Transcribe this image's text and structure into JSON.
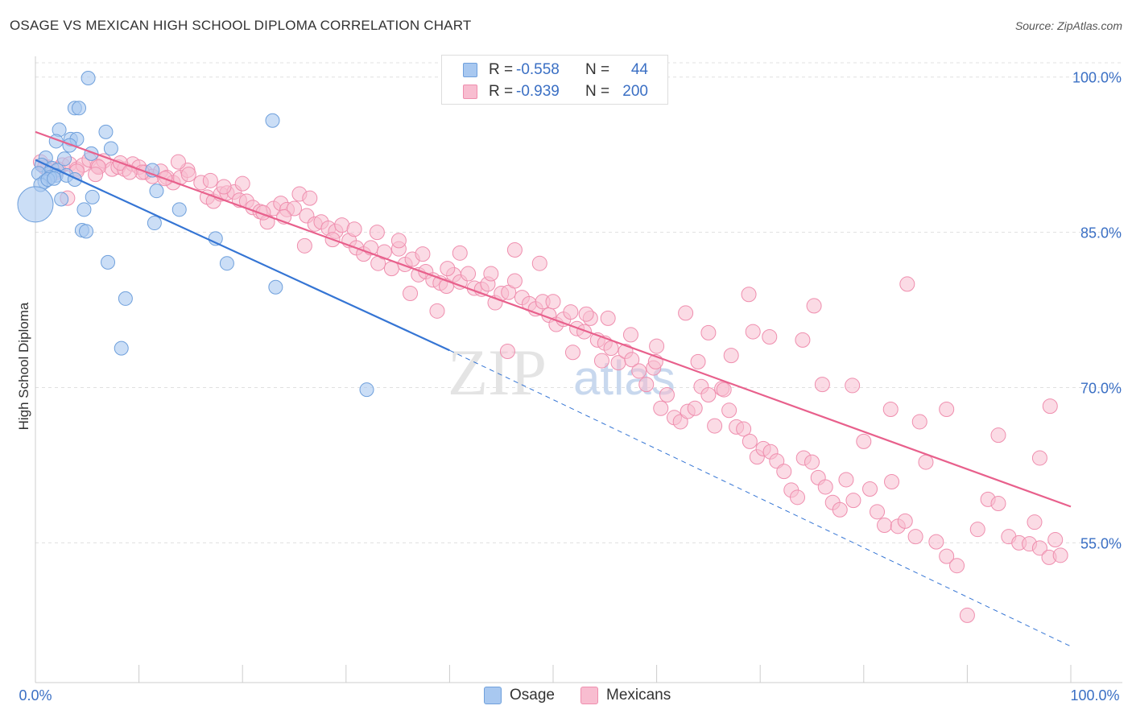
{
  "header": {
    "title": "OSAGE VS MEXICAN HIGH SCHOOL DIPLOMA CORRELATION CHART",
    "source": "Source: ZipAtlas.com"
  },
  "watermark": {
    "zip": "ZIP",
    "atlas": "atlas"
  },
  "colors": {
    "osage_fill": "#a8c8f0",
    "osage_stroke": "#6fa0dc",
    "osage_line": "#3575d4",
    "mexicans_fill": "#f8bdd0",
    "mexicans_stroke": "#ef8eae",
    "mexicans_line": "#e8608c",
    "tick_label": "#3a6fc4",
    "grid": "#e0e0e0"
  },
  "legend": {
    "osage": {
      "r_label": "R =",
      "r_value": "-0.558",
      "n_label": "N =",
      "n_value": "44"
    },
    "mexicans": {
      "r_label": "R =",
      "r_value": "-0.939",
      "n_label": "N =",
      "n_value": "200"
    }
  },
  "chart_data": {
    "type": "scatter",
    "title": "OSAGE VS MEXICAN HIGH SCHOOL DIPLOMA CORRELATION CHART",
    "xlabel": "",
    "ylabel": "High School Diploma",
    "xlim": [
      0,
      100
    ],
    "ylim": [
      41.5,
      102
    ],
    "x_tick_labels": [
      "0.0%",
      "100.0%"
    ],
    "y_ticks": [
      {
        "value": 100,
        "label": "100.0%"
      },
      {
        "value": 85,
        "label": "85.0%"
      },
      {
        "value": 70,
        "label": "70.0%"
      },
      {
        "value": 55,
        "label": "55.0%"
      }
    ],
    "series": [
      {
        "name": "Osage",
        "r": -0.558,
        "n": 44,
        "trend": {
          "x0": 0,
          "y0": 92.0,
          "x1": 40,
          "y1": 73.6,
          "dashed_to_x": 100,
          "dashed_to_y": 45.0
        },
        "points": [
          [
            5.1,
            99.9
          ],
          [
            3.8,
            97.0
          ],
          [
            4.2,
            97.0
          ],
          [
            2.3,
            94.9
          ],
          [
            6.8,
            94.7
          ],
          [
            3.4,
            94.0
          ],
          [
            2.0,
            93.8
          ],
          [
            4.0,
            94.0
          ],
          [
            3.3,
            93.4
          ],
          [
            7.3,
            93.1
          ],
          [
            5.4,
            92.6
          ],
          [
            2.8,
            92.1
          ],
          [
            1.0,
            92.2
          ],
          [
            0.6,
            91.5
          ],
          [
            1.6,
            91.2
          ],
          [
            2.1,
            91.0
          ],
          [
            1.3,
            90.7
          ],
          [
            0.3,
            90.7
          ],
          [
            2.0,
            90.5
          ],
          [
            3.0,
            90.5
          ],
          [
            1.4,
            90.3
          ],
          [
            3.8,
            90.1
          ],
          [
            0.9,
            89.9
          ],
          [
            0.5,
            89.6
          ],
          [
            1.2,
            90.1
          ],
          [
            11.3,
            91.0
          ],
          [
            11.7,
            89.0
          ],
          [
            2.5,
            88.2
          ],
          [
            5.5,
            88.4
          ],
          [
            0.0,
            87.7
          ],
          [
            4.7,
            87.2
          ],
          [
            13.9,
            87.2
          ],
          [
            11.5,
            85.9
          ],
          [
            4.5,
            85.2
          ],
          [
            4.9,
            85.1
          ],
          [
            17.4,
            84.4
          ],
          [
            7.0,
            82.1
          ],
          [
            18.5,
            82.0
          ],
          [
            8.7,
            78.6
          ],
          [
            23.2,
            79.7
          ],
          [
            8.3,
            73.8
          ],
          [
            22.9,
            95.8
          ],
          [
            32.0,
            69.8
          ],
          [
            1.8,
            90.2
          ]
        ]
      },
      {
        "name": "Mexicans",
        "r": -0.939,
        "n": 200,
        "trend": {
          "x0": 0,
          "y0": 94.7,
          "x1": 100,
          "y1": 58.5
        },
        "points": [
          [
            0.5,
            91.8
          ],
          [
            1.2,
            91.3
          ],
          [
            2.0,
            90.8
          ],
          [
            2.6,
            91.5
          ],
          [
            3.3,
            91.6
          ],
          [
            4.0,
            91.1
          ],
          [
            4.6,
            91.5
          ],
          [
            5.2,
            92.0
          ],
          [
            6.0,
            91.4
          ],
          [
            6.6,
            91.9
          ],
          [
            7.4,
            91.1
          ],
          [
            8.0,
            91.3
          ],
          [
            8.6,
            91.1
          ],
          [
            9.4,
            91.6
          ],
          [
            10.0,
            91.3
          ],
          [
            10.6,
            90.8
          ],
          [
            11.3,
            90.4
          ],
          [
            12.1,
            90.9
          ],
          [
            12.7,
            90.3
          ],
          [
            13.3,
            89.8
          ],
          [
            14.0,
            90.3
          ],
          [
            14.7,
            91.0
          ],
          [
            13.8,
            91.8
          ],
          [
            16.0,
            89.8
          ],
          [
            16.6,
            88.4
          ],
          [
            17.2,
            88.0
          ],
          [
            17.9,
            88.7
          ],
          [
            18.5,
            88.8
          ],
          [
            19.2,
            88.9
          ],
          [
            19.7,
            88.1
          ],
          [
            20.4,
            88.0
          ],
          [
            21.0,
            87.4
          ],
          [
            21.7,
            87.0
          ],
          [
            22.4,
            86.0
          ],
          [
            23.0,
            87.3
          ],
          [
            23.7,
            87.8
          ],
          [
            24.3,
            87.2
          ],
          [
            25.0,
            87.3
          ],
          [
            25.5,
            88.7
          ],
          [
            26.2,
            86.6
          ],
          [
            26.5,
            88.3
          ],
          [
            27.0,
            85.8
          ],
          [
            27.6,
            86.0
          ],
          [
            28.3,
            85.4
          ],
          [
            29.0,
            85.1
          ],
          [
            29.6,
            85.7
          ],
          [
            30.3,
            84.2
          ],
          [
            31.0,
            83.5
          ],
          [
            31.7,
            82.9
          ],
          [
            32.4,
            83.5
          ],
          [
            33.1,
            82.0
          ],
          [
            33.7,
            83.1
          ],
          [
            34.4,
            81.5
          ],
          [
            35.1,
            83.4
          ],
          [
            35.7,
            81.9
          ],
          [
            36.4,
            82.4
          ],
          [
            37.0,
            80.9
          ],
          [
            37.7,
            81.2
          ],
          [
            38.4,
            80.4
          ],
          [
            39.1,
            80.1
          ],
          [
            39.7,
            79.8
          ],
          [
            40.4,
            80.9
          ],
          [
            41.0,
            80.2
          ],
          [
            41.8,
            81.0
          ],
          [
            42.4,
            79.6
          ],
          [
            43.1,
            79.5
          ],
          [
            43.7,
            80.0
          ],
          [
            44.4,
            78.2
          ],
          [
            45.0,
            79.1
          ],
          [
            45.7,
            79.2
          ],
          [
            46.3,
            80.3
          ],
          [
            47.0,
            78.7
          ],
          [
            47.7,
            78.1
          ],
          [
            48.3,
            77.6
          ],
          [
            49.0,
            78.3
          ],
          [
            49.6,
            77.0
          ],
          [
            50.3,
            76.1
          ],
          [
            51.0,
            76.6
          ],
          [
            51.7,
            77.3
          ],
          [
            52.3,
            75.7
          ],
          [
            53.0,
            75.4
          ],
          [
            53.6,
            76.7
          ],
          [
            54.3,
            74.6
          ],
          [
            55.0,
            74.3
          ],
          [
            55.6,
            73.8
          ],
          [
            56.3,
            72.4
          ],
          [
            57.0,
            73.5
          ],
          [
            57.6,
            72.7
          ],
          [
            58.3,
            71.6
          ],
          [
            59.0,
            70.3
          ],
          [
            59.7,
            71.9
          ],
          [
            60.4,
            68.0
          ],
          [
            61.0,
            69.3
          ],
          [
            61.7,
            67.1
          ],
          [
            62.3,
            66.7
          ],
          [
            63.0,
            67.7
          ],
          [
            63.7,
            68.0
          ],
          [
            64.3,
            70.1
          ],
          [
            65.0,
            69.3
          ],
          [
            65.6,
            66.3
          ],
          [
            66.3,
            69.9
          ],
          [
            67.0,
            67.8
          ],
          [
            67.7,
            66.2
          ],
          [
            68.4,
            66.0
          ],
          [
            69.0,
            64.8
          ],
          [
            69.7,
            63.3
          ],
          [
            70.3,
            64.1
          ],
          [
            71.0,
            63.8
          ],
          [
            71.6,
            62.9
          ],
          [
            72.3,
            61.9
          ],
          [
            73.0,
            60.1
          ],
          [
            73.6,
            59.4
          ],
          [
            74.2,
            63.2
          ],
          [
            75.0,
            62.8
          ],
          [
            75.6,
            61.3
          ],
          [
            76.3,
            60.4
          ],
          [
            77.0,
            58.9
          ],
          [
            77.7,
            58.2
          ],
          [
            78.3,
            61.1
          ],
          [
            79.0,
            59.1
          ],
          [
            80.0,
            64.8
          ],
          [
            80.6,
            60.2
          ],
          [
            81.3,
            58.0
          ],
          [
            82.0,
            56.7
          ],
          [
            82.7,
            60.9
          ],
          [
            83.3,
            56.6
          ],
          [
            84.0,
            57.1
          ],
          [
            85.0,
            55.6
          ],
          [
            86.0,
            62.8
          ],
          [
            87.0,
            55.1
          ],
          [
            88.0,
            53.7
          ],
          [
            89.0,
            52.8
          ],
          [
            90.0,
            48.0
          ],
          [
            91.0,
            56.3
          ],
          [
            92.0,
            59.2
          ],
          [
            93.0,
            58.8
          ],
          [
            94.0,
            55.6
          ],
          [
            95.0,
            55.0
          ],
          [
            96.0,
            54.9
          ],
          [
            97.0,
            54.5
          ],
          [
            97.9,
            53.6
          ],
          [
            98.5,
            55.3
          ],
          [
            99.0,
            53.8
          ],
          [
            96.5,
            57.0
          ],
          [
            68.9,
            79.0
          ],
          [
            75.2,
            77.9
          ],
          [
            84.2,
            80.0
          ],
          [
            97.0,
            63.2
          ],
          [
            98.0,
            68.2
          ],
          [
            93.0,
            65.4
          ],
          [
            88.0,
            67.9
          ],
          [
            85.4,
            66.7
          ],
          [
            82.6,
            67.9
          ],
          [
            78.9,
            70.2
          ],
          [
            76.0,
            70.3
          ],
          [
            74.1,
            74.6
          ],
          [
            70.9,
            74.9
          ],
          [
            69.3,
            75.4
          ],
          [
            67.2,
            73.1
          ],
          [
            65.0,
            75.3
          ],
          [
            62.8,
            77.2
          ],
          [
            60.0,
            74.0
          ],
          [
            57.5,
            75.1
          ],
          [
            55.3,
            76.7
          ],
          [
            53.2,
            77.1
          ],
          [
            50.0,
            78.3
          ],
          [
            48.7,
            82.0
          ],
          [
            46.3,
            83.3
          ],
          [
            44.0,
            81.0
          ],
          [
            41.0,
            83.0
          ],
          [
            39.8,
            81.5
          ],
          [
            37.4,
            82.9
          ],
          [
            35.1,
            84.2
          ],
          [
            33.0,
            85.0
          ],
          [
            30.8,
            85.3
          ],
          [
            28.7,
            84.3
          ],
          [
            26.0,
            83.7
          ],
          [
            24.0,
            86.5
          ],
          [
            22.0,
            86.9
          ],
          [
            20.0,
            89.7
          ],
          [
            18.2,
            89.4
          ],
          [
            16.9,
            90.0
          ],
          [
            14.8,
            90.6
          ],
          [
            12.5,
            90.2
          ],
          [
            10.3,
            90.8
          ],
          [
            8.2,
            91.7
          ],
          [
            6.1,
            91.3
          ],
          [
            4.0,
            90.9
          ],
          [
            2.2,
            91.1
          ],
          [
            0.9,
            91.3
          ],
          [
            3.1,
            88.3
          ],
          [
            5.8,
            90.6
          ],
          [
            9.1,
            90.8
          ],
          [
            36.2,
            79.1
          ],
          [
            38.8,
            77.4
          ],
          [
            45.6,
            73.5
          ],
          [
            51.9,
            73.4
          ],
          [
            54.7,
            72.6
          ],
          [
            59.9,
            72.5
          ],
          [
            64.0,
            72.5
          ],
          [
            66.5,
            69.8
          ]
        ]
      }
    ],
    "legend_position": "top-center",
    "bottom_legend": [
      "Osage",
      "Mexicans"
    ]
  }
}
